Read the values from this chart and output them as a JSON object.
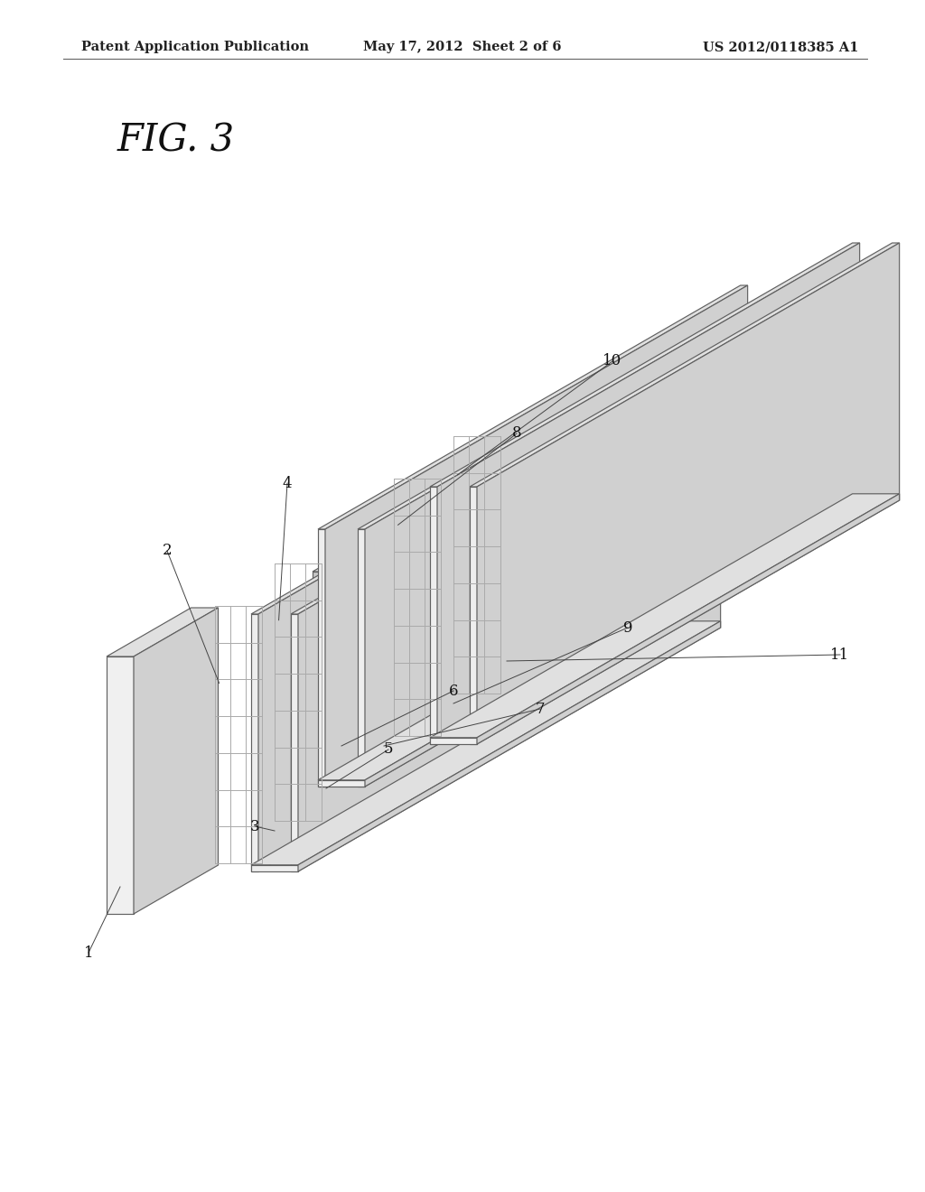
{
  "background_color": "#ffffff",
  "header_left": "Patent Application Publication",
  "header_center": "May 17, 2012  Sheet 2 of 6",
  "header_right": "US 2012/0118385 A1",
  "fig_label": "FIG. 3",
  "header_fontsize": 10.5,
  "fig_label_fontsize": 30,
  "label_fontsize": 12,
  "panel_fc": "#f0f0f0",
  "gray_fc": "#c8c8c8",
  "frame_fc": "#eeeeee",
  "edge_color": "#555555",
  "grid_color": "#aaaaaa",
  "top_face_fc": "#e0e0e0",
  "side_face_fc": "#d0d0d0"
}
